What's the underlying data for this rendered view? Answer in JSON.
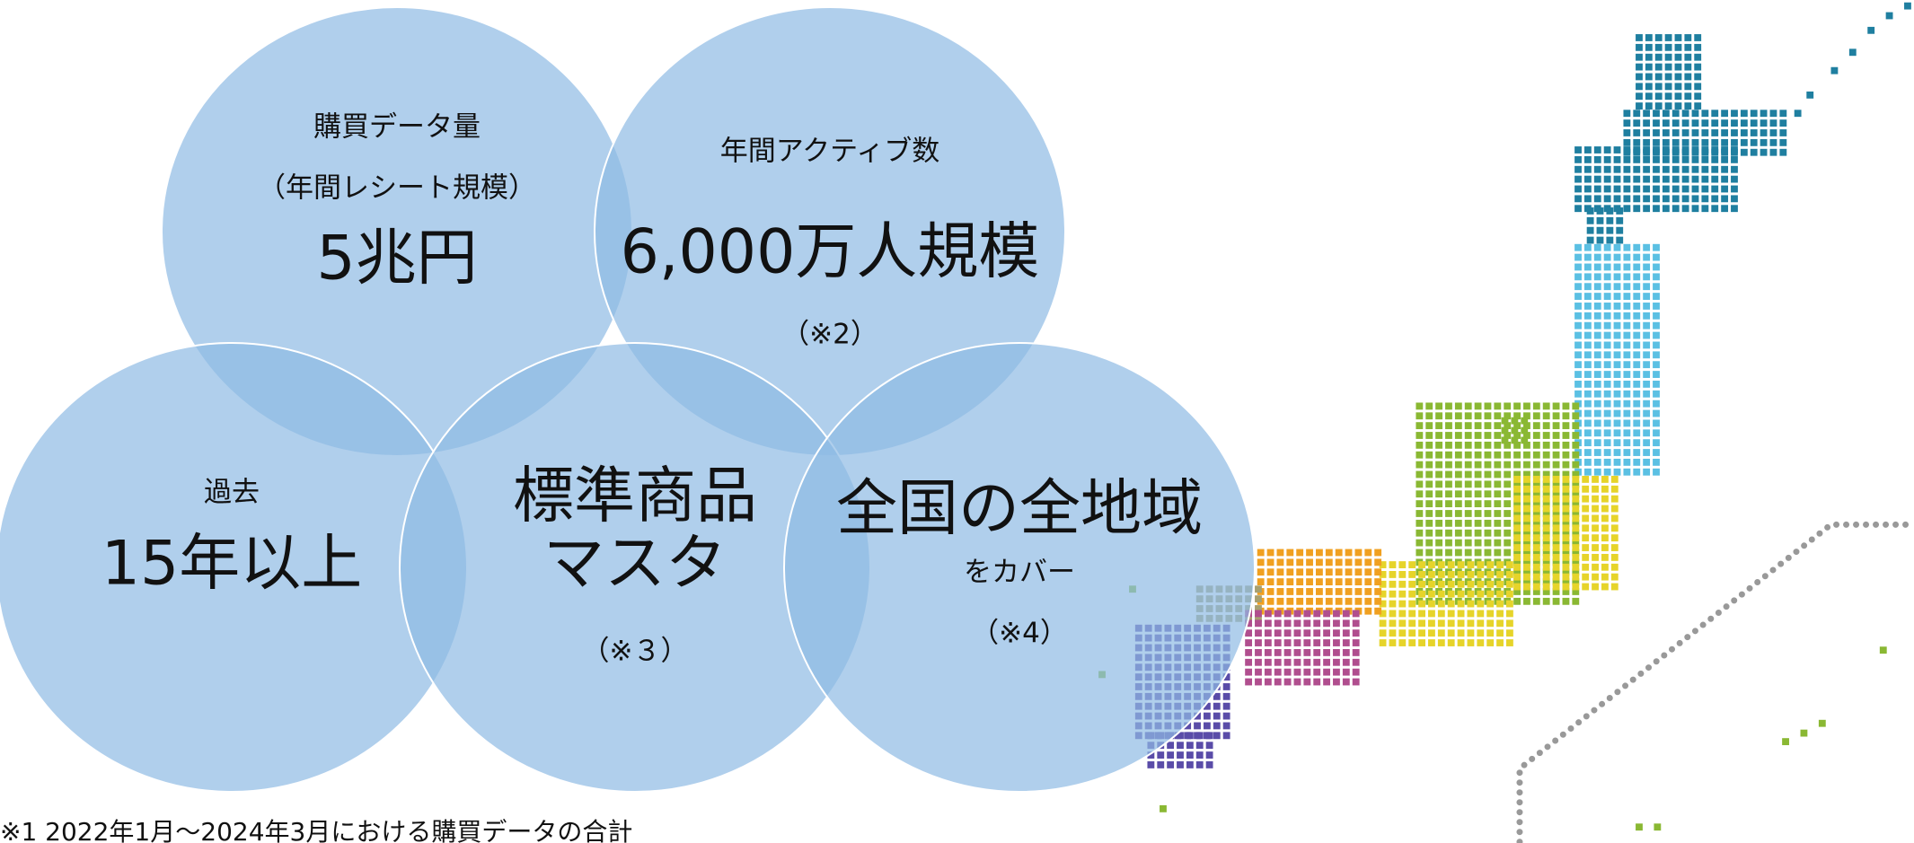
{
  "circles": [
    {
      "lines": [
        "購買データ量",
        "（年間レシート規模）",
        "5兆円"
      ]
    },
    {
      "lines": [
        "年間アクティブ数",
        "6,000万人規模",
        "（※2）"
      ]
    },
    {
      "lines": [
        "過去",
        "15年以上"
      ]
    },
    {
      "lines": [
        "標準商品",
        "マスタ",
        "（※３）"
      ]
    },
    {
      "lines": [
        "全国の全地域",
        "をカバー",
        "（※4）"
      ]
    }
  ],
  "footnote": "※1  2022年1月～2024年3月における購買データの合計"
}
